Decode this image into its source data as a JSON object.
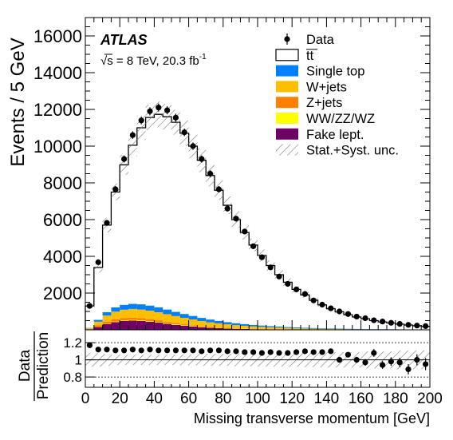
{
  "chart_data": {
    "type": "bar",
    "experiment": "ATLAS",
    "energy_label": "√s = 8 TeV, 20.3 fb",
    "energy_sup": "-1",
    "ylabel": "Events / 5 GeV",
    "xlabel": "Missing transverse momentum [GeV]",
    "ratio_ylabel_top": "Data",
    "ratio_ylabel_bottom": "Prediction",
    "xlim": [
      0,
      200
    ],
    "ylim": [
      0,
      17000
    ],
    "ratio_ylim": [
      0.68,
      1.35
    ],
    "yticks": [
      {
        "value": 2000,
        "label": "2000"
      },
      {
        "value": 4000,
        "label": "4000"
      },
      {
        "value": 6000,
        "label": "6000"
      },
      {
        "value": 8000,
        "label": "8000"
      },
      {
        "value": 10000,
        "label": "10000"
      },
      {
        "value": 12000,
        "label": "12000"
      },
      {
        "value": 14000,
        "label": "14000"
      },
      {
        "value": 16000,
        "label": "16000"
      }
    ],
    "xticks": [
      {
        "value": 0,
        "label": "0"
      },
      {
        "value": 20,
        "label": "20"
      },
      {
        "value": 40,
        "label": "40"
      },
      {
        "value": 60,
        "label": "60"
      },
      {
        "value": 80,
        "label": "80"
      },
      {
        "value": 100,
        "label": "100"
      },
      {
        "value": 120,
        "label": "120"
      },
      {
        "value": 140,
        "label": "140"
      },
      {
        "value": 160,
        "label": "160"
      },
      {
        "value": 180,
        "label": "180"
      },
      {
        "value": 200,
        "label": "200"
      }
    ],
    "ratio_yticks": [
      {
        "value": 0.8,
        "label": "0.8"
      },
      {
        "value": 1.0,
        "label": "1"
      },
      {
        "value": 1.2,
        "label": "1.2"
      }
    ],
    "bin_edges": [
      0,
      5,
      10,
      15,
      20,
      25,
      30,
      35,
      40,
      45,
      50,
      55,
      60,
      65,
      70,
      75,
      80,
      85,
      90,
      95,
      100,
      105,
      110,
      115,
      120,
      125,
      130,
      135,
      140,
      145,
      150,
      155,
      160,
      165,
      170,
      175,
      180,
      185,
      190,
      195,
      200
    ],
    "series": [
      {
        "name": "Fake lept.",
        "color": "#6e0066",
        "values": [
          20,
          150,
          320,
          420,
          480,
          500,
          480,
          440,
          390,
          330,
          270,
          220,
          180,
          140,
          110,
          90,
          70,
          55,
          45,
          35,
          30,
          25,
          20,
          15,
          12,
          10,
          8,
          6,
          5,
          4,
          3,
          3,
          2,
          2,
          2,
          1,
          1,
          1,
          1,
          1
        ]
      },
      {
        "name": "WW/ZZ/WZ",
        "color": "#ffff00",
        "values": [
          2,
          10,
          20,
          30,
          35,
          40,
          40,
          40,
          38,
          36,
          34,
          30,
          28,
          25,
          22,
          20,
          18,
          16,
          14,
          12,
          10,
          9,
          8,
          7,
          6,
          5,
          4,
          4,
          3,
          3,
          2,
          2,
          2,
          2,
          1,
          1,
          1,
          1,
          1,
          1
        ]
      },
      {
        "name": "Z+jets",
        "color": "#ff7f00",
        "values": [
          20,
          80,
          110,
          130,
          130,
          125,
          115,
          100,
          90,
          75,
          62,
          50,
          40,
          32,
          26,
          20,
          16,
          13,
          10,
          8,
          7,
          6,
          5,
          4,
          3,
          3,
          2,
          2,
          2,
          1,
          1,
          1,
          1,
          1,
          1,
          1,
          1,
          1,
          1,
          1
        ]
      },
      {
        "name": "W+jets",
        "color": "#ffbf00",
        "values": [
          40,
          200,
          330,
          410,
          450,
          470,
          470,
          460,
          440,
          410,
          380,
          350,
          315,
          280,
          250,
          220,
          195,
          170,
          150,
          130,
          115,
          100,
          88,
          76,
          66,
          58,
          50,
          44,
          38,
          33,
          29,
          25,
          22,
          19,
          17,
          15,
          13,
          11,
          10,
          9
        ]
      },
      {
        "name": "Single top",
        "color": "#0080ff",
        "values": [
          18,
          100,
          180,
          230,
          260,
          275,
          280,
          275,
          265,
          250,
          230,
          210,
          190,
          170,
          150,
          133,
          117,
          102,
          90,
          79,
          69,
          60,
          53,
          46,
          40,
          35,
          31,
          27,
          24,
          21,
          18,
          16,
          14,
          12,
          11,
          10,
          9,
          8,
          7,
          6
        ]
      },
      {
        "name": "tt",
        "color": "#ffffff",
        "values": [
          1200,
          2850,
          4740,
          6280,
          7625,
          8640,
          9615,
          10245,
          10507,
          10499,
          10324,
          9840,
          9247,
          8583,
          7842,
          7117,
          6364,
          5644,
          4991,
          4351,
          3819,
          3300,
          2826,
          2442,
          2073,
          1789,
          1515,
          1277,
          1078,
          918,
          767,
          653,
          559,
          464,
          398,
          342,
          286,
          239,
          200,
          170
        ]
      }
    ],
    "prediction_totals": [
      1300,
      3390,
      5700,
      7500,
      8980,
      10050,
      11000,
      11560,
      11730,
      11600,
      11300,
      10700,
      10000,
      9230,
      8400,
      7600,
      6780,
      6000,
      5300,
      4615,
      4050,
      3500,
      3000,
      2590,
      2200,
      1900,
      1610,
      1360,
      1150,
      980,
      820,
      700,
      600,
      500,
      430,
      370,
      310,
      260,
      220,
      188
    ],
    "data_points": {
      "x": [
        2.5,
        7.5,
        12.5,
        17.5,
        22.5,
        27.5,
        32.5,
        37.5,
        42.5,
        47.5,
        52.5,
        57.5,
        62.5,
        67.5,
        72.5,
        77.5,
        82.5,
        87.5,
        92.5,
        97.5,
        102.5,
        107.5,
        112.5,
        117.5,
        122.5,
        127.5,
        132.5,
        137.5,
        142.5,
        147.5,
        152.5,
        157.5,
        162.5,
        167.5,
        172.5,
        177.5,
        182.5,
        187.5,
        192.5,
        197.5
      ],
      "y": [
        1300,
        3680,
        5820,
        7650,
        9300,
        10600,
        11400,
        11900,
        12100,
        11950,
        11550,
        10750,
        10000,
        9300,
        8500,
        7650,
        6600,
        6050,
        5350,
        4550,
        3950,
        3400,
        2900,
        2500,
        2200,
        1950,
        1600,
        1370,
        1170,
        1000,
        860,
        720,
        630,
        520,
        450,
        380,
        320,
        270,
        230,
        200
      ],
      "ratio": [
        1.17,
        1.12,
        1.12,
        1.11,
        1.11,
        1.12,
        1.11,
        1.12,
        1.11,
        1.11,
        1.11,
        1.11,
        1.11,
        1.1,
        1.11,
        1.11,
        1.1,
        1.1,
        1.09,
        1.09,
        1.08,
        1.09,
        1.08,
        1.08,
        1.09,
        1.1,
        1.09,
        1.09,
        1.1,
        1.0,
        1.06,
        1.0,
        0.97,
        1.08,
        0.94,
        0.98,
        0.97,
        0.89,
        1.0,
        0.95
      ],
      "err": [
        0.02,
        0.02,
        0.02,
        0.015,
        0.015,
        0.015,
        0.015,
        0.015,
        0.015,
        0.015,
        0.015,
        0.015,
        0.015,
        0.015,
        0.015,
        0.015,
        0.015,
        0.015,
        0.015,
        0.02,
        0.02,
        0.02,
        0.02,
        0.02,
        0.02,
        0.025,
        0.025,
        0.025,
        0.03,
        0.03,
        0.03,
        0.035,
        0.04,
        0.045,
        0.045,
        0.05,
        0.055,
        0.06,
        0.065,
        0.07
      ]
    },
    "uncertainty": {
      "name": "Stat.+Syst. unc.",
      "rel": [
        0.08,
        0.08,
        0.07,
        0.06,
        0.06,
        0.06,
        0.06,
        0.06,
        0.06,
        0.06,
        0.06,
        0.065,
        0.065,
        0.07,
        0.07,
        0.07,
        0.07,
        0.075,
        0.075,
        0.075,
        0.08,
        0.08,
        0.08,
        0.08,
        0.08,
        0.085,
        0.085,
        0.085,
        0.09,
        0.09,
        0.09,
        0.09,
        0.1,
        0.1,
        0.1,
        0.1,
        0.11,
        0.11,
        0.11,
        0.11
      ]
    },
    "legend": [
      {
        "label": "Data",
        "kind": "marker",
        "color": "#000000"
      },
      {
        "label": "tt",
        "kind": "box",
        "color": "#ffffff",
        "overline": true
      },
      {
        "label": "Single top",
        "kind": "box",
        "color": "#0080ff"
      },
      {
        "label": "W+jets",
        "kind": "box",
        "color": "#ffbf00"
      },
      {
        "label": "Z+jets",
        "kind": "box",
        "color": "#ff7f00"
      },
      {
        "label": "WW/ZZ/WZ",
        "kind": "box",
        "color": "#ffff00"
      },
      {
        "label": "Fake lept.",
        "kind": "box",
        "color": "#6e0066"
      },
      {
        "label": "Stat.+Syst. unc.",
        "kind": "hatch",
        "color": "#888888"
      }
    ]
  }
}
